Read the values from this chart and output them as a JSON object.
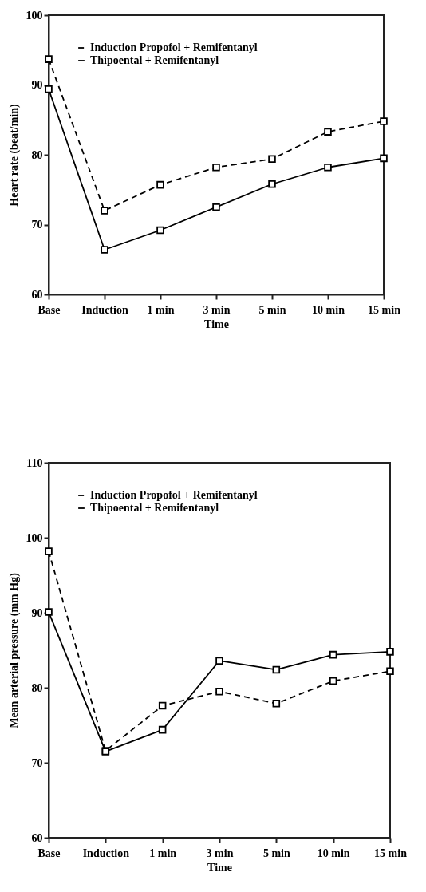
{
  "chart_data": [
    {
      "type": "line",
      "xlabel": "Time",
      "ylabel": "Heart rate (beat/min)",
      "categories": [
        "Base",
        "Induction",
        "1 min",
        "3 min",
        "5 min",
        "10 min",
        "15 min"
      ],
      "ylim": [
        60,
        100
      ],
      "yticks": [
        60,
        70,
        80,
        90,
        100
      ],
      "grid": false,
      "legend": "top left",
      "marker": "square",
      "series": [
        {
          "name": "Induction Propofol + Remifentanyl",
          "color": "#000000",
          "line_style": "dashed",
          "values": [
            93.7,
            72.0,
            75.7,
            78.2,
            79.4,
            83.3,
            84.8
          ]
        },
        {
          "name": "Thipoental + Remifentanyl",
          "color": "#000000",
          "line_style": "solid",
          "values": [
            89.4,
            66.4,
            69.2,
            72.5,
            75.8,
            78.2,
            79.5
          ]
        }
      ]
    },
    {
      "type": "line",
      "xlabel": "Time",
      "ylabel": "Mean arterial pressure (mm Hg)",
      "categories": [
        "Base",
        "Induction",
        "1 min",
        "3 min",
        "5 min",
        "10 min",
        "15 min"
      ],
      "ylim": [
        60,
        110
      ],
      "yticks": [
        60,
        70,
        80,
        90,
        100,
        110
      ],
      "grid": false,
      "legend": "top left",
      "marker": "square",
      "series": [
        {
          "name": "Induction Propofol + Remifentanyl",
          "color": "#000000",
          "line_style": "dashed",
          "values": [
            98.2,
            71.6,
            77.6,
            79.5,
            77.9,
            80.9,
            82.2
          ]
        },
        {
          "name": "Thipoental + Remifentanyl",
          "color": "#000000",
          "line_style": "solid",
          "values": [
            90.1,
            71.5,
            74.4,
            83.6,
            82.4,
            84.4,
            84.8
          ]
        }
      ]
    }
  ]
}
